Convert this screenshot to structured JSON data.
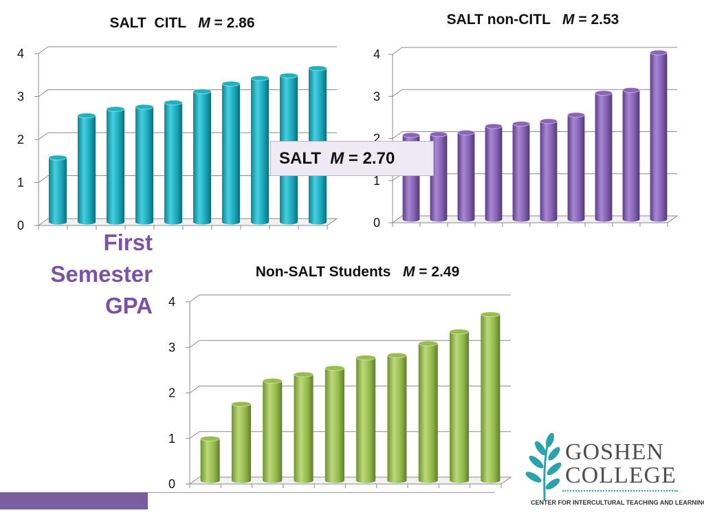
{
  "side_title": [
    "First",
    "Semester",
    "GPA"
  ],
  "overall": {
    "label": "SALT",
    "stat": "M",
    "eq": " = 2.70"
  },
  "logo": {
    "line1": "GOSHEN",
    "line2": "COLLEGE",
    "subtitle": "CENTER FOR INTERCULTURAL TEACHING AND LEARNING",
    "icon": "leaf-branch-icon",
    "colors": {
      "leaf": "#2aa3ad",
      "text": "#4e4e4e"
    }
  },
  "chart_data": [
    {
      "type": "bar",
      "title_prefix": "SALT  CITL   ",
      "stat": "M",
      "title_suffix": " = 2.86",
      "xlabel": "",
      "ylabel": "",
      "ylim": [
        0,
        4
      ],
      "yticks": [
        "0",
        "1",
        "2",
        "3",
        "4"
      ],
      "grid": true,
      "legend": "none",
      "color": "#1fb0c2",
      "values": [
        1.5,
        2.48,
        2.63,
        2.68,
        2.78,
        3.04,
        3.22,
        3.35,
        3.41,
        3.58
      ]
    },
    {
      "type": "bar",
      "title_prefix": "SALT non-CITL   ",
      "stat": "M",
      "title_suffix": " = 2.53",
      "xlabel": "",
      "ylabel": "",
      "ylim": [
        0,
        4
      ],
      "yticks": [
        "0",
        "1",
        "2",
        "3",
        "4"
      ],
      "grid": true,
      "legend": "none",
      "color": "#8a64b8",
      "values": [
        2.0,
        2.02,
        2.06,
        2.21,
        2.27,
        2.33,
        2.48,
        3.0,
        3.07,
        3.96
      ]
    },
    {
      "type": "bar",
      "title_prefix": "Non-SALT Students   ",
      "stat": "M",
      "title_suffix": " = 2.49",
      "xlabel": "",
      "ylabel": "",
      "ylim": [
        0,
        4
      ],
      "yticks": [
        "0",
        "1",
        "2",
        "3",
        "4"
      ],
      "grid": true,
      "legend": "none",
      "color": "#98bd4e",
      "values": [
        0.92,
        1.68,
        2.19,
        2.33,
        2.47,
        2.7,
        2.75,
        3.01,
        3.27,
        3.65
      ]
    }
  ]
}
